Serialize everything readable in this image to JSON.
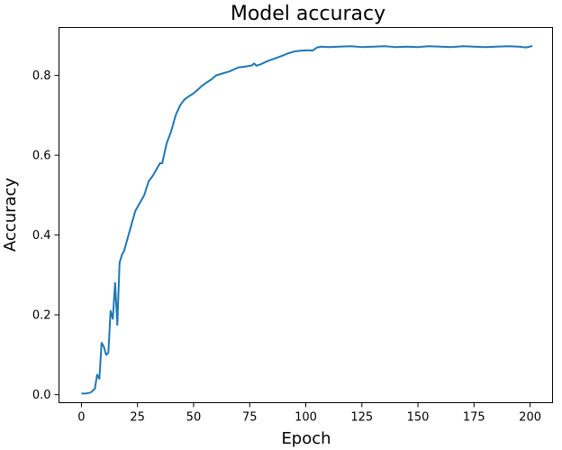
{
  "chart_data": {
    "type": "line",
    "title": "Model accuracy",
    "xlabel": "Epoch",
    "ylabel": "Accuracy",
    "xlim": [
      -10,
      210
    ],
    "ylim": [
      -0.02,
      0.92
    ],
    "xticks": [
      0,
      25,
      50,
      75,
      100,
      125,
      150,
      175,
      200
    ],
    "yticks": [
      0.0,
      0.2,
      0.4,
      0.6,
      0.8
    ],
    "xtick_labels": [
      "0",
      "25",
      "50",
      "75",
      "100",
      "125",
      "150",
      "175",
      "200"
    ],
    "ytick_labels": [
      "0.0",
      "0.2",
      "0.4",
      "0.6",
      "0.8"
    ],
    "grid": false,
    "series": [
      {
        "color": "#1f77b4",
        "x": [
          0,
          2,
          4,
          6,
          7,
          8,
          9,
          10,
          11,
          12,
          13,
          14,
          15,
          16,
          17,
          18,
          19,
          20,
          22,
          24,
          26,
          28,
          30,
          32,
          34,
          35,
          36,
          38,
          40,
          42,
          44,
          46,
          48,
          50,
          52,
          54,
          56,
          58,
          60,
          63,
          66,
          70,
          73,
          76,
          77,
          78,
          80,
          83,
          86,
          89,
          92,
          95,
          98,
          101,
          103,
          105,
          107,
          110,
          115,
          120,
          125,
          130,
          135,
          140,
          145,
          150,
          155,
          160,
          165,
          170,
          175,
          180,
          185,
          190,
          195,
          198,
          200,
          201
        ],
        "y": [
          0.003,
          0.003,
          0.005,
          0.015,
          0.05,
          0.04,
          0.13,
          0.12,
          0.1,
          0.105,
          0.21,
          0.19,
          0.28,
          0.175,
          0.33,
          0.35,
          0.36,
          0.38,
          0.42,
          0.46,
          0.48,
          0.5,
          0.535,
          0.55,
          0.57,
          0.58,
          0.58,
          0.63,
          0.66,
          0.7,
          0.725,
          0.74,
          0.748,
          0.755,
          0.765,
          0.775,
          0.783,
          0.79,
          0.8,
          0.805,
          0.81,
          0.82,
          0.822,
          0.825,
          0.83,
          0.824,
          0.828,
          0.836,
          0.842,
          0.848,
          0.855,
          0.86,
          0.862,
          0.863,
          0.862,
          0.87,
          0.872,
          0.871,
          0.872,
          0.873,
          0.871,
          0.872,
          0.873,
          0.871,
          0.872,
          0.871,
          0.873,
          0.872,
          0.871,
          0.873,
          0.872,
          0.871,
          0.872,
          0.873,
          0.872,
          0.87,
          0.872,
          0.874
        ]
      }
    ]
  }
}
